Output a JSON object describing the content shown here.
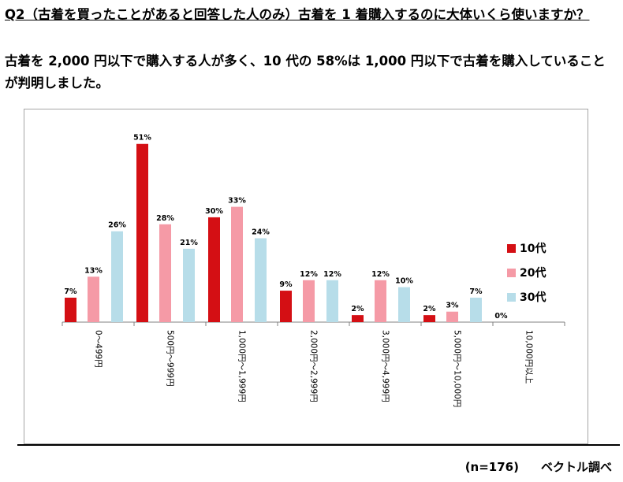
{
  "question": {
    "line1": "Q2（古着を買ったことがあると回答した人のみ）古着を 1 着購入するのに大体いくら使いますか？"
  },
  "finding": {
    "line1": "古着を 2,000 円以下で購入する人が多く、10 代の 58%は 1,000 円以下で古着を購入していることが判明しました。"
  },
  "footer": {
    "sample": "(n=176)",
    "source": "ベクトル調べ"
  },
  "colors": {
    "teens": "#d40f14",
    "twenties": "#f59aa6",
    "thirties": "#b7dde9"
  },
  "chart_data": {
    "type": "bar",
    "categories": [
      "0～499円",
      "500円～999円",
      "1,000円～1,999円",
      "2,000円～2,999円",
      "3,000円～4,999円",
      "5,000円～10,000円",
      "10,000円以上"
    ],
    "series": [
      {
        "name": "10代",
        "values": [
          7,
          51,
          30,
          9,
          2,
          2,
          0
        ],
        "labels": [
          "7%",
          "51%",
          "30%",
          "9%",
          "2%",
          "2%",
          "0%"
        ]
      },
      {
        "name": "20代",
        "values": [
          13,
          28,
          33,
          12,
          12,
          3,
          null
        ],
        "labels": [
          "13%",
          "28%",
          "33%",
          "12%",
          "12%",
          "3%",
          ""
        ]
      },
      {
        "name": "30代",
        "values": [
          26,
          21,
          24,
          12,
          10,
          7,
          null
        ],
        "labels": [
          "26%",
          "21%",
          "24%",
          "12%",
          "10%",
          "7%",
          ""
        ]
      }
    ],
    "ylim": [
      0,
      55
    ],
    "legend_position": "right",
    "grid": false
  }
}
